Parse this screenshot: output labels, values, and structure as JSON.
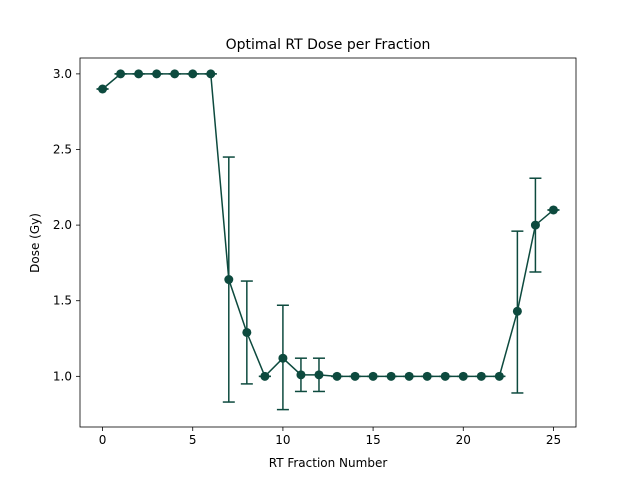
{
  "chart_data": {
    "type": "line",
    "title": "Optimal RT Dose per Fraction",
    "xlabel": "RT Fraction Number",
    "ylabel": "Dose (Gy)",
    "xlim": [
      -1.25,
      26.25
    ],
    "ylim": [
      0.665,
      3.105
    ],
    "xticks": [
      0,
      5,
      10,
      15,
      20,
      25
    ],
    "xtick_labels": [
      "0",
      "5",
      "10",
      "15",
      "20",
      "25"
    ],
    "yticks": [
      1.0,
      1.5,
      2.0,
      2.5,
      3.0
    ],
    "ytick_labels": [
      "1.0",
      "1.5",
      "2.0",
      "2.5",
      "3.0"
    ],
    "grid": false,
    "legend": "none",
    "color": "#0d4a3e",
    "series": [
      {
        "x": [
          0,
          1,
          2,
          3,
          4,
          5,
          6,
          7,
          8,
          9,
          10,
          11,
          12,
          13,
          14,
          15,
          16,
          17,
          18,
          19,
          20,
          21,
          22,
          23,
          24,
          25
        ],
        "y": [
          2.9,
          3.0,
          3.0,
          3.0,
          3.0,
          3.0,
          3.0,
          1.64,
          1.29,
          1.0,
          1.12,
          1.01,
          1.01,
          1.0,
          1.0,
          1.0,
          1.0,
          1.0,
          1.0,
          1.0,
          1.0,
          1.0,
          1.0,
          1.43,
          2.0,
          2.1
        ],
        "yerr_low": [
          2.9,
          3.0,
          3.0,
          3.0,
          3.0,
          3.0,
          3.0,
          0.83,
          0.95,
          1.0,
          0.78,
          0.9,
          0.9,
          1.0,
          1.0,
          1.0,
          1.0,
          1.0,
          1.0,
          1.0,
          1.0,
          1.0,
          1.0,
          0.89,
          1.69,
          2.1
        ],
        "yerr_high": [
          2.9,
          3.0,
          3.0,
          3.0,
          3.0,
          3.0,
          3.0,
          2.45,
          1.63,
          1.0,
          1.47,
          1.12,
          1.12,
          1.0,
          1.0,
          1.0,
          1.0,
          1.0,
          1.0,
          1.0,
          1.0,
          1.0,
          1.0,
          1.96,
          2.31,
          2.1
        ]
      }
    ]
  }
}
